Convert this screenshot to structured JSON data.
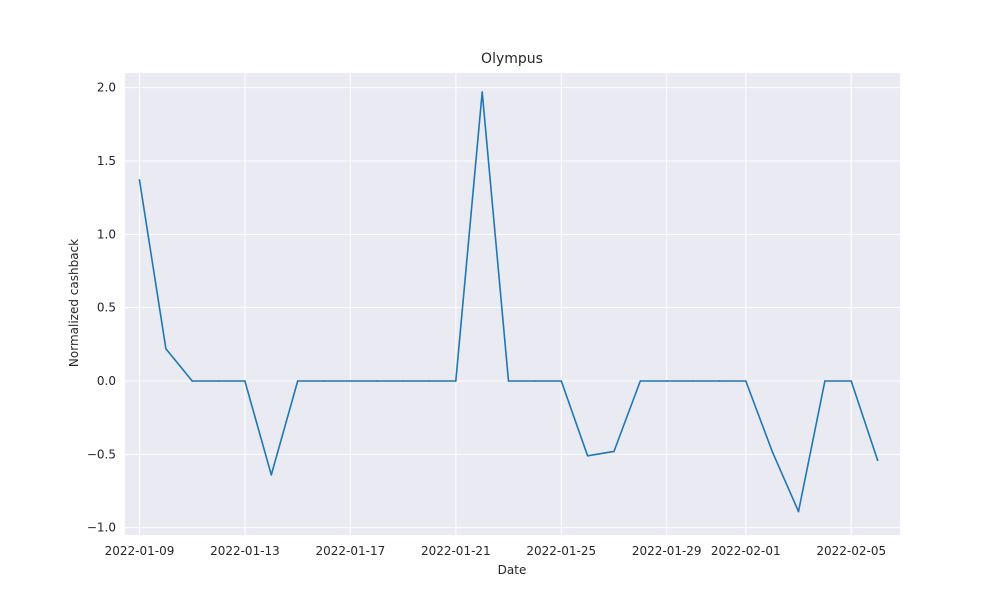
{
  "chart_data": {
    "type": "line",
    "title": "Olympus",
    "xlabel": "Date",
    "ylabel": "Normalized cashback",
    "x": [
      "2022-01-09",
      "2022-01-10",
      "2022-01-11",
      "2022-01-12",
      "2022-01-13",
      "2022-01-14",
      "2022-01-15",
      "2022-01-16",
      "2022-01-17",
      "2022-01-18",
      "2022-01-19",
      "2022-01-20",
      "2022-01-21",
      "2022-01-22",
      "2022-01-23",
      "2022-01-24",
      "2022-01-25",
      "2022-01-26",
      "2022-01-27",
      "2022-01-28",
      "2022-01-29",
      "2022-01-30",
      "2022-01-31",
      "2022-02-01",
      "2022-02-02",
      "2022-02-03",
      "2022-02-04",
      "2022-02-05",
      "2022-02-06"
    ],
    "series": [
      {
        "values": [
          1.37,
          0.22,
          0.0,
          0.0,
          0.0,
          -0.64,
          0.0,
          0.0,
          0.0,
          0.0,
          0.0,
          0.0,
          0.0,
          1.97,
          0.0,
          0.0,
          0.0,
          -0.51,
          -0.48,
          0.0,
          0.0,
          0.0,
          0.0,
          0.0,
          -0.48,
          -0.89,
          0.0,
          0.0,
          -0.54
        ],
        "color": "#1f77b4"
      }
    ],
    "xlim": [
      "2022-01-08",
      "2022-02-07"
    ],
    "ylim": [
      -1.05,
      2.1
    ],
    "x_ticks": [
      "2022-01-09",
      "2022-01-13",
      "2022-01-17",
      "2022-01-21",
      "2022-01-25",
      "2022-01-29",
      "2022-02-01",
      "2022-02-05"
    ],
    "y_ticks": [
      "−1.0",
      "−0.5",
      "0.0",
      "0.5",
      "1.0",
      "1.5",
      "2.0"
    ],
    "grid": true,
    "background": "#eaeaf2",
    "grid_color": "#ffffff"
  }
}
